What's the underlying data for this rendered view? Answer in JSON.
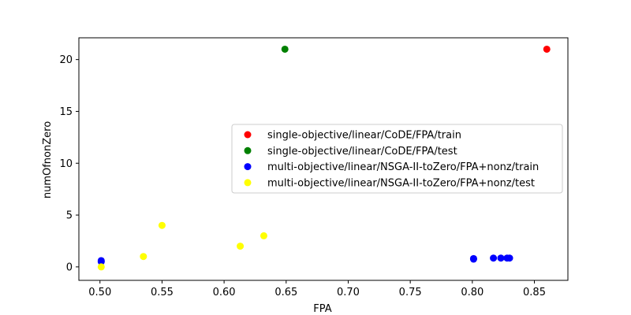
{
  "chart_data": {
    "type": "scatter",
    "title": "",
    "xlabel": "FPA",
    "ylabel": "numOfnonZero",
    "xlim": [
      0.483,
      0.877
    ],
    "ylim": [
      -1.3,
      22.1
    ],
    "xticks": [
      0.5,
      0.55,
      0.6,
      0.65,
      0.7,
      0.75,
      0.8,
      0.85
    ],
    "xtick_labels": [
      "0.50",
      "0.55",
      "0.60",
      "0.65",
      "0.70",
      "0.75",
      "0.80",
      "0.85"
    ],
    "yticks": [
      0,
      5,
      10,
      15,
      20
    ],
    "ytick_labels": [
      "0",
      "5",
      "10",
      "15",
      "20"
    ],
    "grid": false,
    "legend_position": "center-right",
    "series": [
      {
        "name": "single-objective/linear/CoDE/FPA/train",
        "color": "#ff0000",
        "points": [
          [
            0.86,
            21
          ]
        ]
      },
      {
        "name": "single-objective/linear/CoDE/FPA/test",
        "color": "#008000",
        "points": [
          [
            0.649,
            21
          ]
        ]
      },
      {
        "name": "multi-objective/linear/NSGA-II-toZero/FPA+nonz/train",
        "color": "#0000ff",
        "points": [
          [
            0.501,
            0.6
          ],
          [
            0.501,
            0.5
          ],
          [
            0.801,
            0.8
          ],
          [
            0.801,
            0.75
          ],
          [
            0.817,
            0.85
          ],
          [
            0.823,
            0.85
          ],
          [
            0.828,
            0.85
          ],
          [
            0.83,
            0.85
          ]
        ]
      },
      {
        "name": "multi-objective/linear/NSGA-II-toZero/FPA+nonz/test",
        "color": "#ffff00",
        "points": [
          [
            0.501,
            0.0
          ],
          [
            0.535,
            1.0
          ],
          [
            0.55,
            4.0
          ],
          [
            0.613,
            2.0
          ],
          [
            0.632,
            3.0
          ]
        ]
      }
    ]
  }
}
